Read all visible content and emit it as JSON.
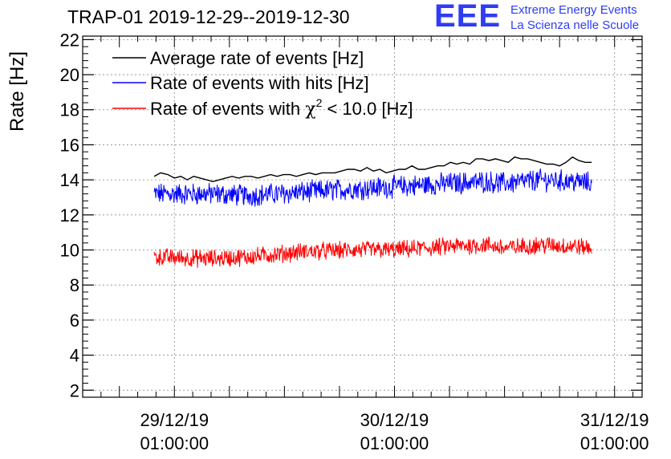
{
  "header": {
    "title": "TRAP-01 2019-12-29--2019-12-30",
    "logo_text": "EEE",
    "logo_line1": "Extreme Energy Events",
    "logo_line2": "La Scienza nelle Scuole"
  },
  "chart_data": {
    "type": "line",
    "title": "TRAP-01 2019-12-29--2019-12-30",
    "ylabel": "Rate [Hz]",
    "xlabel": "",
    "ylim": [
      1.6,
      22.2
    ],
    "xlim_hours": [
      -10,
      51
    ],
    "yticks": [
      {
        "value": 2,
        "label": "2"
      },
      {
        "value": 4,
        "label": "4"
      },
      {
        "value": 6,
        "label": "6"
      },
      {
        "value": 8,
        "label": "8"
      },
      {
        "value": 10,
        "label": "10"
      },
      {
        "value": 12,
        "label": "12"
      },
      {
        "value": 14,
        "label": "14"
      },
      {
        "value": 16,
        "label": "16"
      },
      {
        "value": 18,
        "label": "18"
      },
      {
        "value": 20,
        "label": "20"
      },
      {
        "value": 22,
        "label": "22"
      }
    ],
    "xticks": [
      {
        "hour": 0,
        "date": "29/12/19",
        "time": "01:00:00"
      },
      {
        "hour": 24,
        "date": "30/12/19",
        "time": "01:00:00"
      },
      {
        "hour": 48,
        "date": "31/12/19",
        "time": "01:00:00"
      }
    ],
    "grid": true,
    "legend_position": "top-left",
    "legend": [
      {
        "label": "Average rate of events [Hz]",
        "color": "#000000"
      },
      {
        "label": "Rate of events with hits [Hz]",
        "color": "#0000ff"
      },
      {
        "label": "Rate of events with",
        "math": "χ",
        "sup": "2",
        "suffix": " < 10.0 [Hz]",
        "color": "#ff0000"
      }
    ],
    "series": [
      {
        "name": "Average rate of events [Hz]",
        "color": "#000000",
        "hours": [
          -2.2,
          -1.5,
          -0.7,
          0.0,
          0.7,
          1.4,
          2.1,
          2.8,
          3.5,
          4.2,
          4.9,
          5.6,
          6.3,
          7.0,
          7.7,
          8.4,
          9.1,
          9.8,
          10.5,
          11.2,
          11.9,
          12.6,
          13.3,
          14.0,
          14.7,
          15.4,
          16.1,
          16.8,
          17.5,
          18.2,
          18.9,
          19.6,
          20.3,
          21.0,
          21.7,
          22.4,
          23.1,
          23.8,
          24.5,
          25.2,
          25.9,
          26.6,
          27.3,
          28.0,
          28.7,
          29.4,
          30.1,
          30.8,
          31.5,
          32.2,
          32.9,
          33.6,
          34.3,
          35.0,
          35.7,
          36.4,
          37.1,
          37.8,
          38.5,
          39.2,
          39.9,
          40.6,
          41.3,
          42.0,
          42.7,
          43.4,
          44.1,
          44.8,
          45.5
        ],
        "values": [
          14.2,
          14.4,
          14.3,
          14.1,
          14.2,
          14.0,
          14.2,
          14.1,
          14.0,
          13.9,
          14.0,
          14.1,
          14.2,
          14.1,
          14.2,
          14.2,
          14.1,
          14.2,
          14.3,
          14.2,
          14.3,
          14.3,
          14.2,
          14.3,
          14.4,
          14.3,
          14.4,
          14.4,
          14.4,
          14.5,
          14.6,
          14.6,
          14.5,
          14.7,
          14.5,
          14.6,
          14.4,
          14.5,
          14.6,
          14.6,
          14.8,
          14.6,
          14.6,
          14.7,
          14.8,
          14.8,
          15.0,
          14.9,
          15.0,
          14.9,
          15.2,
          15.2,
          15.1,
          15.2,
          15.1,
          15.0,
          15.3,
          15.2,
          15.2,
          15.1,
          15.0,
          14.9,
          14.9,
          14.8,
          15.0,
          15.3,
          15.1,
          15.0,
          15.0
        ]
      },
      {
        "name": "Rate of events with hits [Hz]",
        "color": "#0000ff",
        "noisy": true,
        "hours": [
          -2.2,
          4.0,
          8.0,
          14.0,
          20.0,
          24.0,
          30.0,
          34.0,
          36.0,
          40.0,
          44.0,
          45.5
        ],
        "values": [
          13.2,
          13.2,
          13.1,
          13.3,
          13.5,
          13.6,
          13.8,
          13.9,
          13.8,
          14.0,
          13.9,
          13.8
        ],
        "spread": 0.55
      },
      {
        "name": "Rate of events with χ2 < 10.0 [Hz]",
        "color": "#ff0000",
        "noisy": true,
        "hours": [
          -2.2,
          4.0,
          8.0,
          14.0,
          20.0,
          24.0,
          30.0,
          34.0,
          36.0,
          40.0,
          44.0,
          45.5
        ],
        "values": [
          9.6,
          9.5,
          9.6,
          9.9,
          10.0,
          10.0,
          10.2,
          10.3,
          10.1,
          10.3,
          10.2,
          10.1
        ],
        "spread": 0.45
      }
    ]
  }
}
